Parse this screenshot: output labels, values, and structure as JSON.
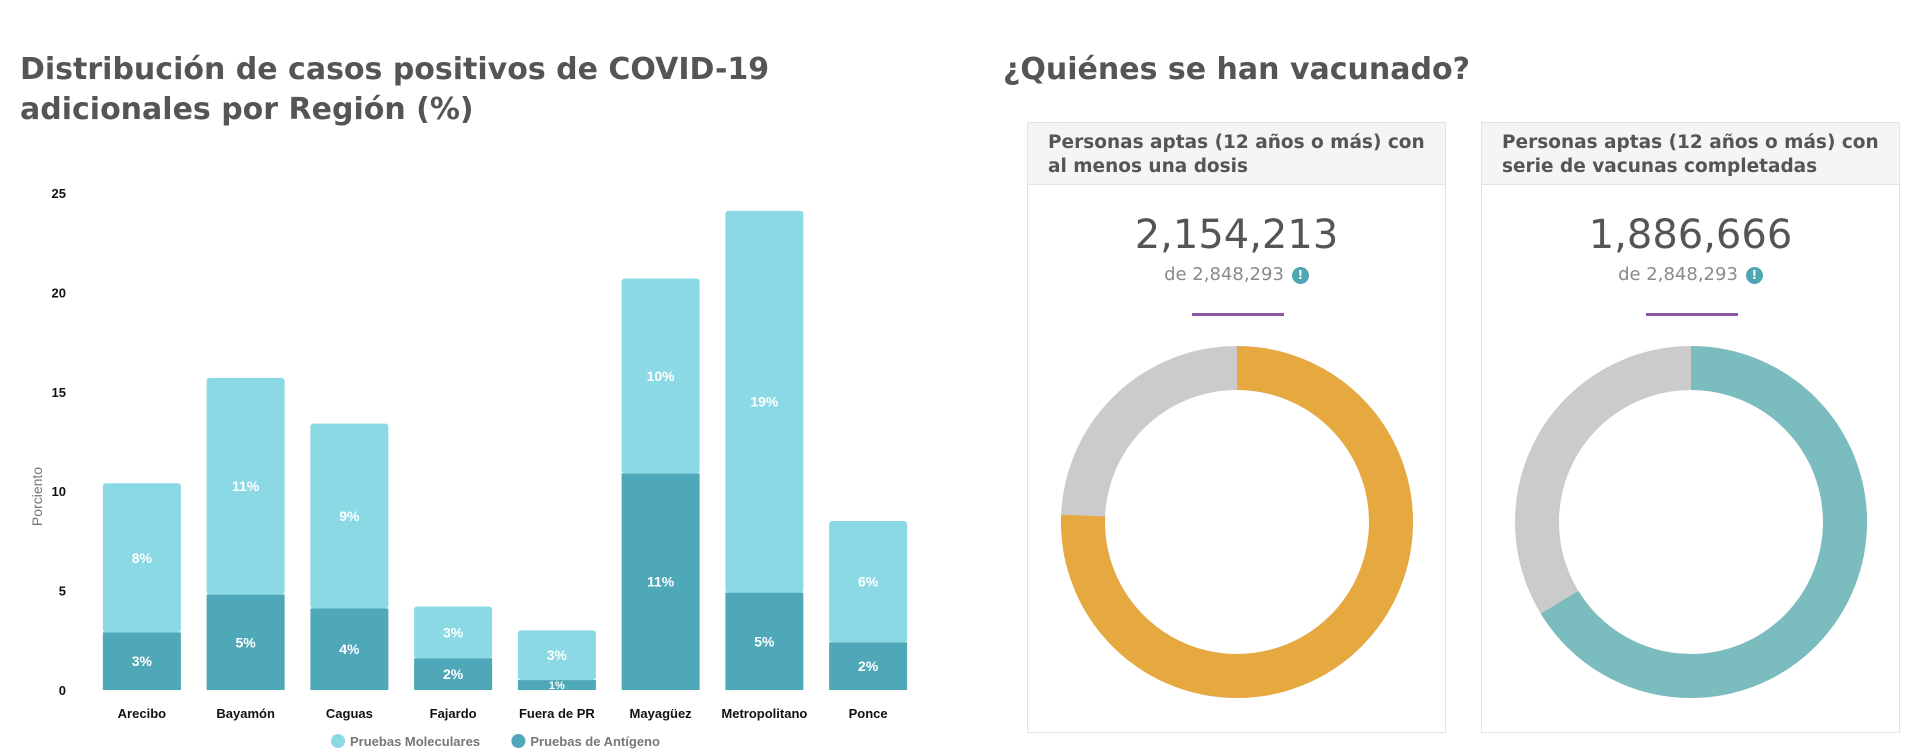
{
  "left_title": "Distribución de casos positivos de COVID-19 adicionales por Región (%)",
  "right_title": "¿Quiénes se han vacunado?",
  "chart_data": {
    "type": "bar",
    "stacked": true,
    "title": "Distribución de casos positivos de COVID-19 adicionales por Región (%)",
    "xlabel": "",
    "ylabel": "Porciento",
    "ylim": [
      0,
      25
    ],
    "yticks": [
      0,
      5,
      10,
      15,
      20,
      25
    ],
    "categories": [
      "Arecibo",
      "Bayamón",
      "Caguas",
      "Fajardo",
      "Fuera de PR",
      "Mayagüez",
      "Metropolitano",
      "Ponce"
    ],
    "series": [
      {
        "name": "Pruebas de Antígeno",
        "color": "#4fa8b8",
        "values": [
          2.9,
          4.8,
          4.1,
          1.6,
          0.5,
          10.9,
          4.9,
          2.4
        ],
        "labels": [
          "3%",
          "5%",
          "4%",
          "2%",
          "1%",
          "11%",
          "5%",
          "2%"
        ]
      },
      {
        "name": "Pruebas Moleculares",
        "color": "#8ad9e5",
        "values": [
          7.5,
          10.9,
          9.3,
          2.6,
          2.5,
          9.8,
          19.2,
          6.1
        ],
        "labels": [
          "8%",
          "11%",
          "9%",
          "3%",
          "3%",
          "10%",
          "19%",
          "6%"
        ]
      }
    ],
    "legend": {
      "position": "bottom",
      "entries": [
        "Pruebas Moleculares",
        "Pruebas de Antígeno"
      ]
    },
    "grid": false
  },
  "cards": [
    {
      "header": "Personas aptas (12 años o más) con al menos una dosis",
      "value": "2,154,213",
      "subtitle": "de 2,848,293",
      "info_icon": "!",
      "donut": {
        "value": 2154213,
        "total": 2848293,
        "fill_color": "#e6a940",
        "rest_color": "#cbcbcb"
      }
    },
    {
      "header": "Personas aptas (12 años o más) con serie de vacunas completadas",
      "value": "1,886,666",
      "subtitle": "de 2,848,293",
      "info_icon": "!",
      "donut": {
        "value": 1886666,
        "total": 2848293,
        "fill_color": "#7bbcbf",
        "rest_color": "#cbcbcb"
      }
    }
  ]
}
